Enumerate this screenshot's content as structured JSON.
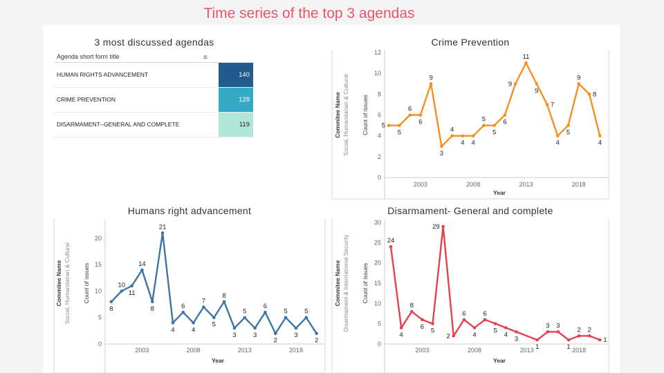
{
  "slide_title": "Time series of the top 3 agendas",
  "agenda_table": {
    "title": "3 most discussed agendas",
    "column_header": "Agenda short form title",
    "sort_icon": "sort-descending-icon",
    "rows": [
      {
        "label": "HUMAN RIGHTS ADVANCEMENT",
        "value": "140",
        "color": "#235b8e",
        "text_color": "#ffffff"
      },
      {
        "label": "CRIME PREVENTION",
        "value": "128",
        "color": "#36a9c4",
        "text_color": "#ffffff"
      },
      {
        "label": "DISARMAMENT--GENERAL AND COMPLETE",
        "value": "119",
        "color": "#b2e6d8",
        "text_color": "#222222"
      }
    ]
  },
  "chart_data": [
    {
      "id": "crime",
      "type": "line",
      "title": "Crime Prevention",
      "xlabel": "Year",
      "ylabel": "Count of issues",
      "row_header": "Commitee Name",
      "row_value": "Social, Humanitarian & Cultural",
      "color": "#f5901e",
      "x": [
        2000,
        2001,
        2002,
        2003,
        2004,
        2005,
        2006,
        2007,
        2008,
        2009,
        2010,
        2011,
        2012,
        2013,
        2014,
        2015,
        2016,
        2017,
        2018,
        2019,
        2020
      ],
      "values": [
        5,
        5,
        6,
        6,
        9,
        3,
        4,
        4,
        4,
        5,
        5,
        6,
        9,
        11,
        9,
        7,
        4,
        5,
        9,
        8,
        4
      ],
      "label_pos": [
        "l",
        "b",
        "t",
        "b",
        "t",
        "b",
        "t",
        "b",
        "b",
        "t",
        "b",
        "b",
        "l",
        "t",
        "b",
        "r",
        "b",
        "b",
        "t",
        "r",
        "b"
      ],
      "xticks": [
        2003,
        2008,
        2013,
        2018
      ],
      "yticks": [
        0,
        2,
        4,
        6,
        8,
        10,
        12
      ],
      "ylim": [
        0,
        12
      ],
      "xlim": [
        1999.6,
        2020.7
      ]
    },
    {
      "id": "human",
      "type": "line",
      "title": "Humans right advancement",
      "xlabel": "Year",
      "ylabel": "Count of issues",
      "row_header": "Commitee Name",
      "row_value": "Social, Humanitarian & Cultural",
      "color": "#3d75a5",
      "x": [
        2000,
        2001,
        2002,
        2003,
        2004,
        2005,
        2006,
        2007,
        2008,
        2009,
        2010,
        2011,
        2012,
        2013,
        2014,
        2015,
        2016,
        2017,
        2018,
        2019,
        2020
      ],
      "values": [
        8,
        10,
        11,
        14,
        8,
        21,
        4,
        6,
        4,
        7,
        5,
        8,
        3,
        5,
        3,
        6,
        2,
        5,
        3,
        5,
        2
      ],
      "label_pos": [
        "b",
        "t",
        "b",
        "t",
        "b",
        "t",
        "b",
        "t",
        "b",
        "t",
        "b",
        "t",
        "b",
        "t",
        "b",
        "t",
        "b",
        "t",
        "b",
        "t",
        "b"
      ],
      "xticks": [
        2003,
        2008,
        2013,
        2018
      ],
      "yticks": [
        0,
        5,
        10,
        15,
        20
      ],
      "ylim": [
        0,
        23
      ],
      "xlim": [
        1999.4,
        2020.7
      ]
    },
    {
      "id": "disarm",
      "type": "line",
      "title": "Disarmament- General and complete",
      "xlabel": "Year",
      "ylabel": "Count of issues",
      "row_header": "Commitee Name",
      "row_value": "Disarmament & International Security",
      "color": "#e8404e",
      "x": [
        2000,
        2001,
        2002,
        2003,
        2004,
        2005,
        2006,
        2007,
        2008,
        2009,
        2010,
        2011,
        2012,
        2013,
        2014,
        2015,
        2016,
        2017,
        2018,
        2019,
        2020
      ],
      "values": [
        24,
        4,
        8,
        6,
        5,
        29,
        2,
        6,
        4,
        6,
        5,
        4,
        3,
        null,
        1,
        3,
        3,
        1,
        2,
        2,
        1
      ],
      "labels": [
        "24",
        "4",
        "8",
        "6",
        "5",
        "29",
        "2",
        "6",
        "4",
        "6",
        "5",
        "4",
        "3",
        "",
        "1",
        "3",
        "3",
        "1",
        "2",
        "2",
        "1"
      ],
      "label_pos": [
        "t",
        "b",
        "t",
        "b",
        "b",
        "l",
        "l",
        "t",
        "b",
        "t",
        "b",
        "b",
        "b",
        "n",
        "b",
        "t",
        "t",
        "b",
        "t",
        "t",
        "r"
      ],
      "xticks": [
        2003,
        2008,
        2013,
        2018
      ],
      "yticks": [
        0,
        5,
        10,
        15,
        20,
        25,
        30
      ],
      "ylim": [
        0,
        30
      ],
      "xlim": [
        1999.4,
        2020.7
      ]
    }
  ]
}
